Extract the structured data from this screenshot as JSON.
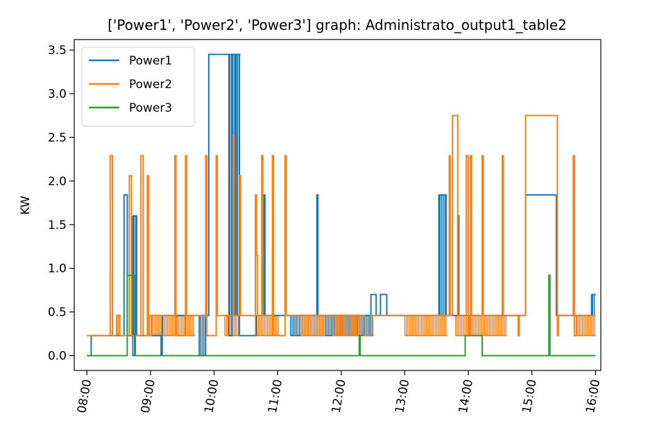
{
  "chart_data": {
    "type": "line",
    "title": "['Power1', 'Power2', 'Power3'] graph: Administrato_output1_table2",
    "xlabel": "",
    "ylabel": "KW",
    "x_unit": "time (HH:MM)",
    "xlim": [
      "07:48",
      "16:05"
    ],
    "ylim": [
      -0.17,
      3.62
    ],
    "xticks": [
      "08:00",
      "09:00",
      "10:00",
      "11:00",
      "12:00",
      "13:00",
      "14:00",
      "15:00",
      "16:00"
    ],
    "yticks": [
      "0.0",
      "0.5",
      "1.0",
      "1.5",
      "2.0",
      "2.5",
      "3.0",
      "3.5"
    ],
    "legend_position": "top-left",
    "grid": false,
    "series": [
      {
        "name": "Power1",
        "color": "#1f77b4",
        "points": [
          [
            "08:00",
            0.0
          ],
          [
            "08:04",
            0.0
          ],
          [
            "08:04",
            0.23
          ],
          [
            "08:35",
            0.23
          ],
          [
            "08:35",
            1.84
          ],
          [
            "08:38",
            1.84
          ],
          [
            "08:38",
            0.23
          ],
          [
            "08:44",
            0.23
          ],
          [
            "08:44",
            1.6
          ],
          [
            "08:47",
            1.6
          ],
          [
            "08:47",
            0.23
          ],
          [
            "09:10",
            0.23
          ],
          [
            "09:10",
            0.0
          ],
          [
            "09:11",
            0.0
          ],
          [
            "09:11",
            0.46
          ],
          [
            "09:46",
            0.46
          ],
          [
            "09:46",
            0.0
          ],
          [
            "09:52",
            0.0
          ],
          [
            "09:52",
            0.46
          ],
          [
            "09:55",
            0.46
          ],
          [
            "09:55",
            3.45
          ],
          [
            "10:14",
            3.45
          ],
          [
            "10:14",
            0.23
          ],
          [
            "10:17",
            0.23
          ],
          [
            "10:17",
            3.45
          ],
          [
            "10:20",
            3.45
          ],
          [
            "10:20",
            0.46
          ],
          [
            "10:22",
            0.46
          ],
          [
            "10:22",
            3.45
          ],
          [
            "10:24",
            3.45
          ],
          [
            "10:24",
            0.23
          ],
          [
            "10:40",
            0.23
          ],
          [
            "10:40",
            0.46
          ],
          [
            "10:47",
            0.46
          ],
          [
            "10:47",
            1.84
          ],
          [
            "10:48",
            1.84
          ],
          [
            "10:48",
            0.46
          ],
          [
            "11:37",
            0.46
          ],
          [
            "11:37",
            1.84
          ],
          [
            "11:38",
            1.84
          ],
          [
            "11:38",
            0.46
          ],
          [
            "12:28",
            0.46
          ],
          [
            "12:28",
            0.7
          ],
          [
            "12:33",
            0.7
          ],
          [
            "12:33",
            0.46
          ],
          [
            "12:37",
            0.46
          ],
          [
            "12:37",
            0.7
          ],
          [
            "12:43",
            0.7
          ],
          [
            "12:43",
            0.46
          ],
          [
            "13:33",
            0.46
          ],
          [
            "13:33",
            1.84
          ],
          [
            "13:39",
            1.84
          ],
          [
            "13:39",
            0.46
          ],
          [
            "13:50",
            0.46
          ],
          [
            "13:50",
            1.6
          ],
          [
            "13:51",
            1.6
          ],
          [
            "13:51",
            0.46
          ],
          [
            "14:54",
            0.46
          ],
          [
            "14:54",
            1.84
          ],
          [
            "15:23",
            1.84
          ],
          [
            "15:23",
            0.46
          ],
          [
            "15:57",
            0.46
          ],
          [
            "15:57",
            0.7
          ],
          [
            "16:00",
            0.7
          ]
        ]
      },
      {
        "name": "Power2",
        "color": "#ff7f0e",
        "points": [
          [
            "08:00",
            0.23
          ],
          [
            "08:22",
            0.23
          ],
          [
            "08:22",
            2.29
          ],
          [
            "08:24",
            2.29
          ],
          [
            "08:24",
            0.23
          ],
          [
            "08:28",
            0.23
          ],
          [
            "08:28",
            0.46
          ],
          [
            "08:31",
            0.46
          ],
          [
            "08:31",
            0.23
          ],
          [
            "08:40",
            0.23
          ],
          [
            "08:40",
            2.06
          ],
          [
            "08:42",
            2.06
          ],
          [
            "08:42",
            0.23
          ],
          [
            "08:51",
            0.23
          ],
          [
            "08:51",
            2.29
          ],
          [
            "08:53",
            2.29
          ],
          [
            "08:53",
            0.23
          ],
          [
            "08:57",
            0.23
          ],
          [
            "08:57",
            2.06
          ],
          [
            "08:58",
            2.06
          ],
          [
            "08:58",
            0.23
          ],
          [
            "09:01",
            0.23
          ],
          [
            "09:01",
            0.46
          ],
          [
            "09:23",
            0.46
          ],
          [
            "09:23",
            2.29
          ],
          [
            "09:24",
            2.29
          ],
          [
            "09:24",
            0.23
          ],
          [
            "09:33",
            0.23
          ],
          [
            "09:33",
            2.29
          ],
          [
            "09:34",
            2.29
          ],
          [
            "09:34",
            0.46
          ],
          [
            "09:52",
            0.46
          ],
          [
            "09:52",
            2.29
          ],
          [
            "09:53",
            2.29
          ],
          [
            "09:53",
            0.23
          ],
          [
            "10:02",
            0.23
          ],
          [
            "10:02",
            2.29
          ],
          [
            "10:03",
            2.29
          ],
          [
            "10:03",
            0.46
          ],
          [
            "10:18",
            0.46
          ],
          [
            "10:18",
            2.52
          ],
          [
            "10:19",
            2.52
          ],
          [
            "10:19",
            0.46
          ],
          [
            "10:24",
            0.46
          ],
          [
            "10:24",
            2.06
          ],
          [
            "10:25",
            2.06
          ],
          [
            "10:25",
            0.46
          ],
          [
            "10:39",
            0.46
          ],
          [
            "10:39",
            1.84
          ],
          [
            "10:40",
            1.84
          ],
          [
            "10:40",
            1.15
          ],
          [
            "10:41",
            1.15
          ],
          [
            "10:41",
            0.46
          ],
          [
            "10:45",
            0.46
          ],
          [
            "10:45",
            2.29
          ],
          [
            "10:46",
            2.29
          ],
          [
            "10:46",
            0.46
          ],
          [
            "10:55",
            0.46
          ],
          [
            "10:55",
            2.29
          ],
          [
            "10:56",
            2.29
          ],
          [
            "10:56",
            0.23
          ],
          [
            "11:07",
            0.23
          ],
          [
            "11:07",
            2.29
          ],
          [
            "11:08",
            2.29
          ],
          [
            "11:08",
            0.46
          ],
          [
            "12:22",
            0.46
          ],
          [
            "12:22",
            0.23
          ],
          [
            "12:28",
            0.23
          ],
          [
            "12:28",
            0.46
          ],
          [
            "13:42",
            0.46
          ],
          [
            "13:42",
            2.29
          ],
          [
            "13:43",
            2.29
          ],
          [
            "13:43",
            0.46
          ],
          [
            "13:45",
            0.46
          ],
          [
            "13:45",
            2.75
          ],
          [
            "13:50",
            2.75
          ],
          [
            "13:50",
            0.46
          ],
          [
            "13:58",
            0.46
          ],
          [
            "13:58",
            2.29
          ],
          [
            "14:00",
            2.29
          ],
          [
            "14:00",
            0.23
          ],
          [
            "14:02",
            0.23
          ],
          [
            "14:02",
            2.29
          ],
          [
            "14:03",
            2.29
          ],
          [
            "14:03",
            0.46
          ],
          [
            "14:13",
            0.46
          ],
          [
            "14:13",
            2.29
          ],
          [
            "14:14",
            2.29
          ],
          [
            "14:14",
            0.46
          ],
          [
            "14:32",
            0.46
          ],
          [
            "14:32",
            2.29
          ],
          [
            "14:33",
            2.29
          ],
          [
            "14:33",
            0.46
          ],
          [
            "14:47",
            0.46
          ],
          [
            "14:47",
            0.23
          ],
          [
            "14:48",
            0.23
          ],
          [
            "14:48",
            0.46
          ],
          [
            "14:54",
            0.46
          ],
          [
            "14:54",
            2.75
          ],
          [
            "15:24",
            2.75
          ],
          [
            "15:24",
            0.23
          ],
          [
            "15:25",
            0.23
          ],
          [
            "15:25",
            0.46
          ],
          [
            "15:39",
            0.46
          ],
          [
            "15:39",
            2.29
          ],
          [
            "15:40",
            2.29
          ],
          [
            "15:40",
            0.23
          ],
          [
            "15:42",
            0.23
          ],
          [
            "15:42",
            0.46
          ],
          [
            "16:00",
            0.46
          ]
        ]
      },
      {
        "name": "Power3",
        "color": "#2ca02c",
        "points": [
          [
            "08:00",
            0.0
          ],
          [
            "08:38",
            0.0
          ],
          [
            "08:38",
            0.92
          ],
          [
            "08:45",
            0.92
          ],
          [
            "08:45",
            0.0
          ],
          [
            "12:17",
            0.0
          ],
          [
            "12:17",
            0.23
          ],
          [
            "12:18",
            0.23
          ],
          [
            "12:18",
            0.0
          ],
          [
            "13:57",
            0.0
          ],
          [
            "13:57",
            0.23
          ],
          [
            "14:13",
            0.23
          ],
          [
            "14:13",
            0.0
          ],
          [
            "15:16",
            0.0
          ],
          [
            "15:16",
            0.92
          ],
          [
            "15:17",
            0.92
          ],
          [
            "15:17",
            0.0
          ],
          [
            "16:00",
            0.0
          ]
        ]
      }
    ],
    "flicker_bands": [
      {
        "series": "Power1",
        "ranges": [
          [
            "08:00",
            0.0
          ],
          [
            "16:00",
            0.46
          ]
        ],
        "intervals": [
          [
            "08:43",
            "08:46",
            0.0,
            1.6
          ],
          [
            "09:46",
            "09:53",
            0.0,
            0.46
          ],
          [
            "10:15",
            "10:25",
            0.46,
            3.45
          ],
          [
            "11:12",
            "12:30",
            0.23,
            0.46
          ],
          [
            "13:32",
            "13:39",
            0.46,
            1.84
          ],
          [
            "15:56",
            "16:00",
            0.46,
            0.7
          ]
        ]
      },
      {
        "series": "Power2",
        "ranges": [
          [
            "08:00",
            0.0
          ],
          [
            "16:00",
            0.46
          ]
        ],
        "intervals": [
          [
            "08:28",
            "08:32",
            0.23,
            0.46
          ],
          [
            "08:59",
            "09:42",
            0.23,
            0.46
          ],
          [
            "10:10",
            "10:24",
            0.23,
            0.46
          ],
          [
            "10:39",
            "11:02",
            0.23,
            0.46
          ],
          [
            "11:22",
            "11:45",
            0.23,
            0.46
          ],
          [
            "11:52",
            "12:19",
            0.23,
            0.46
          ],
          [
            "13:00",
            "13:40",
            0.23,
            0.46
          ],
          [
            "13:48",
            "14:36",
            0.23,
            0.46
          ],
          [
            "15:42",
            "16:00",
            0.23,
            0.46
          ]
        ]
      }
    ]
  }
}
